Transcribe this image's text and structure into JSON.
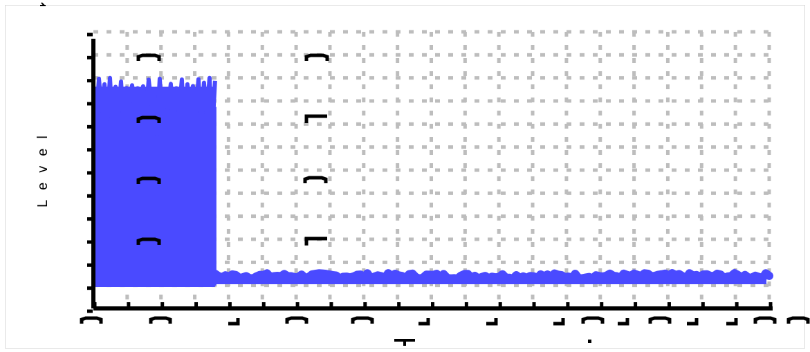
{
  "chart_data": {
    "type": "line",
    "title": "",
    "xlabel": "",
    "ylabel": "Level",
    "grid": true,
    "series": [
      {
        "color": "#4a4aff",
        "segments": [
          {
            "x_start": 0.0,
            "x_end": 0.18,
            "y_min": 0.0,
            "y_max": 0.94
          },
          {
            "x_start": 0.18,
            "x_end": 1.0,
            "y_min": 0.0,
            "y_max": 0.02
          }
        ]
      }
    ],
    "x_tick_count": 20,
    "y_tick_count": 12
  }
}
